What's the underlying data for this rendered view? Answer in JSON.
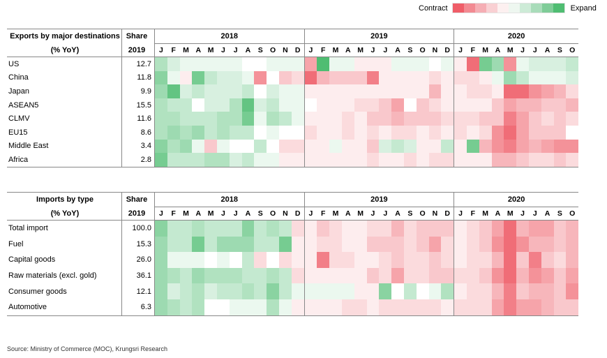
{
  "legend": {
    "contract_label": "Contract",
    "expand_label": "Expand"
  },
  "colors": {
    "contract_strong": "#ee5b66",
    "neutral": "#ffffff",
    "expand_strong": "#4fbd72",
    "scale": [
      "#ef5d68",
      "#f28a92",
      "#f5aeb4",
      "#f9d0d3",
      "#fdf0f0",
      "#eef7f0",
      "#cdebd7",
      "#a9dcba",
      "#7fcc98",
      "#4fbd72"
    ]
  },
  "source": "Source: Ministry of Commerce (MOC), Krungsri Research",
  "chart_data": [
    {
      "type": "heatmap",
      "id": "exports",
      "title_line1": "Exports by major destinations",
      "title_line2": "(% YoY)",
      "share_header": "Share",
      "share_year": "2019",
      "years": [
        {
          "label": "2018",
          "months": [
            "J",
            "F",
            "M",
            "A",
            "M",
            "J",
            "J",
            "A",
            "S",
            "O",
            "N",
            "D"
          ]
        },
        {
          "label": "2019",
          "months": [
            "J",
            "F",
            "M",
            "A",
            "M",
            "J",
            "J",
            "A",
            "S",
            "O",
            "N",
            "D"
          ]
        },
        {
          "label": "2020",
          "months": [
            "J",
            "F",
            "M",
            "A",
            "M",
            "J",
            "J",
            "A",
            "S",
            "O"
          ]
        }
      ],
      "rows": [
        {
          "name": "US",
          "share": "12.7",
          "values": [
            4,
            2,
            1,
            1,
            1,
            1,
            1,
            0,
            0,
            1,
            1,
            1,
            -5,
            9,
            1,
            1,
            -1,
            -1,
            -1,
            1,
            1,
            1,
            0,
            1,
            -1,
            -8,
            7,
            5,
            -6,
            1,
            2,
            2,
            2,
            3
          ]
        },
        {
          "name": "China",
          "share": "11.8",
          "values": [
            6,
            1,
            -1,
            7,
            3,
            2,
            2,
            1,
            -6,
            0,
            -3,
            -2,
            -8,
            -4,
            -3,
            -3,
            -3,
            -7,
            -1,
            -1,
            -1,
            -1,
            -2,
            -1,
            -2,
            -2,
            -1,
            1,
            5,
            3,
            1,
            1,
            1,
            2
          ]
        },
        {
          "name": "Japan",
          "share": "9.9",
          "values": [
            5,
            8,
            2,
            3,
            2,
            2,
            2,
            3,
            0,
            2,
            1,
            1,
            -1,
            -1,
            -1,
            -1,
            -1,
            -1,
            -1,
            -1,
            -1,
            -1,
            -4,
            -1,
            -1,
            -2,
            -2,
            -1,
            -8,
            -8,
            -6,
            -5,
            -4,
            -2
          ]
        },
        {
          "name": "ASEAN5",
          "share": "15.5",
          "values": [
            4,
            3,
            3,
            0,
            2,
            2,
            4,
            8,
            2,
            3,
            1,
            1,
            0,
            -1,
            -1,
            -1,
            -2,
            -2,
            -3,
            -5,
            0,
            -3,
            -2,
            -1,
            -1,
            -1,
            -1,
            -3,
            -5,
            -4,
            -4,
            -3,
            -3,
            -4
          ]
        },
        {
          "name": "CLMV",
          "share": "11.6",
          "values": [
            4,
            4,
            3,
            3,
            3,
            4,
            4,
            7,
            1,
            4,
            3,
            1,
            -1,
            -1,
            -1,
            -2,
            -1,
            -3,
            -3,
            -4,
            -3,
            -3,
            -3,
            -2,
            -2,
            -2,
            -3,
            -3,
            -7,
            -5,
            -3,
            -2,
            -3,
            -2
          ]
        },
        {
          "name": "EU15",
          "share": "8.6",
          "values": [
            4,
            5,
            4,
            5,
            3,
            4,
            3,
            3,
            0,
            1,
            0,
            0,
            -2,
            -1,
            -1,
            -2,
            -1,
            -2,
            -1,
            -2,
            -2,
            -1,
            -2,
            -1,
            -2,
            -1,
            -2,
            -6,
            -8,
            -5,
            -3,
            -3,
            -3,
            0
          ]
        },
        {
          "name": "Middle East",
          "share": "3.4",
          "values": [
            6,
            4,
            5,
            1,
            -3,
            1,
            0,
            0,
            3,
            0,
            -2,
            -2,
            -1,
            -1,
            1,
            -1,
            -1,
            -3,
            2,
            3,
            2,
            -1,
            -1,
            3,
            -1,
            7,
            -4,
            -6,
            -7,
            -5,
            -4,
            -5,
            -6,
            -6
          ]
        },
        {
          "name": "Africa",
          "share": "2.8",
          "values": [
            7,
            3,
            3,
            3,
            4,
            4,
            2,
            3,
            1,
            1,
            -1,
            -1,
            -1,
            -1,
            -1,
            -1,
            -1,
            -2,
            -1,
            -1,
            -2,
            -1,
            -2,
            -2,
            -1,
            -1,
            -1,
            -4,
            -4,
            -3,
            -2,
            -2,
            -3,
            -2
          ]
        }
      ]
    },
    {
      "type": "heatmap",
      "id": "imports",
      "title_line1": "Imports by type",
      "title_line2": "(% YoY)",
      "share_header": "Share",
      "share_year": "2019",
      "years": [
        {
          "label": "2018",
          "months": [
            "J",
            "F",
            "M",
            "A",
            "M",
            "J",
            "J",
            "A",
            "S",
            "O",
            "N",
            "D"
          ]
        },
        {
          "label": "2019",
          "months": [
            "J",
            "F",
            "M",
            "A",
            "M",
            "J",
            "J",
            "A",
            "S",
            "O",
            "N",
            "D"
          ]
        },
        {
          "label": "2020",
          "months": [
            "J",
            "F",
            "M",
            "A",
            "M",
            "J",
            "J",
            "A",
            "S",
            "O"
          ]
        }
      ],
      "rows": [
        {
          "name": "Total import",
          "share": "100.0",
          "values": [
            6,
            3,
            3,
            4,
            3,
            3,
            3,
            6,
            3,
            4,
            3,
            -2,
            -1,
            -3,
            -2,
            -1,
            -1,
            -2,
            -2,
            -4,
            -2,
            -3,
            -3,
            -3,
            -1,
            -2,
            -3,
            -5,
            -8,
            -4,
            -5,
            -5,
            -3,
            -4
          ]
        },
        {
          "name": "Fuel",
          "share": "15.3",
          "values": [
            5,
            3,
            3,
            7,
            3,
            5,
            5,
            5,
            3,
            3,
            7,
            -1,
            -1,
            -2,
            -2,
            -1,
            -1,
            -3,
            -3,
            -3,
            -2,
            -3,
            -5,
            -2,
            -1,
            -2,
            -3,
            -6,
            -8,
            -6,
            -4,
            -4,
            -3,
            -4
          ]
        },
        {
          "name": "Capital goods",
          "share": "26.0",
          "values": [
            5,
            1,
            1,
            1,
            0,
            1,
            0,
            3,
            -2,
            0,
            -2,
            -1,
            -1,
            -7,
            -2,
            -2,
            -1,
            -1,
            -2,
            -3,
            -2,
            -2,
            -3,
            -2,
            -1,
            -2,
            -2,
            -4,
            -8,
            -3,
            -7,
            -3,
            -2,
            -4
          ]
        },
        {
          "name": "Raw materials (excl. gold)",
          "share": "36.1",
          "values": [
            5,
            4,
            3,
            5,
            4,
            4,
            4,
            3,
            3,
            4,
            3,
            -2,
            -1,
            -1,
            -1,
            -1,
            -1,
            -3,
            -2,
            -5,
            -2,
            -2,
            -3,
            -3,
            -2,
            -2,
            -3,
            -6,
            -8,
            -4,
            -6,
            -5,
            -3,
            -5
          ]
        },
        {
          "name": "Consumer goods",
          "share": "12.1",
          "values": [
            5,
            2,
            3,
            4,
            2,
            3,
            3,
            4,
            3,
            6,
            3,
            1,
            1,
            1,
            1,
            1,
            -1,
            -1,
            6,
            0,
            3,
            0,
            1,
            4,
            -1,
            -2,
            -2,
            -4,
            -7,
            -3,
            -4,
            -4,
            -3,
            -6
          ]
        },
        {
          "name": "Automotive",
          "share": "6.3",
          "values": [
            5,
            4,
            3,
            4,
            0,
            0,
            1,
            1,
            1,
            4,
            1,
            -1,
            -1,
            -1,
            -1,
            -2,
            -2,
            -1,
            -2,
            -2,
            -2,
            -2,
            -2,
            -1,
            -2,
            -2,
            -2,
            -5,
            -7,
            -5,
            -5,
            -4,
            -3,
            -3
          ]
        }
      ]
    }
  ]
}
